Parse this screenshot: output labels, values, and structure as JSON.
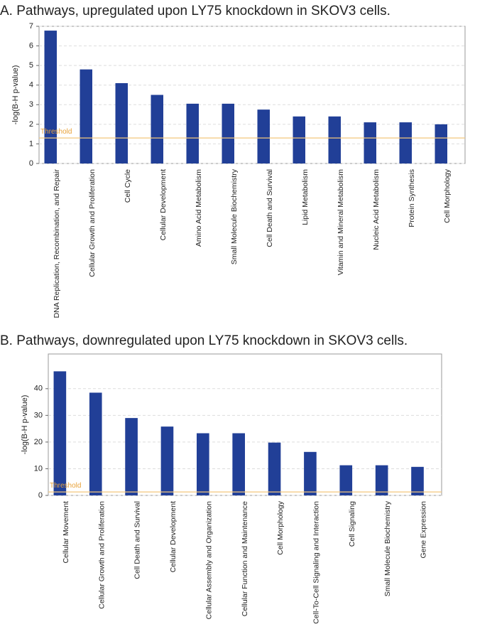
{
  "chart_data": [
    {
      "type": "bar",
      "title": "A. Pathways, upregulated upon LY75 knockdown in SKOV3 cells.",
      "y_label": "-log(B-H p-value)",
      "categories": [
        "DNA Replication, Recombination, and Repair",
        "Cellular Growth and Proliferation",
        "Cell Cycle",
        "Cellular Development",
        "Amino Acid Metabolism",
        "Small Molecule Biochemistry",
        "Cell Death and Survival",
        "Lipid Metabolism",
        "Vitamin and Mineral Metabolism",
        "Nucleic Acid Metabolism",
        "Protein Synthesis",
        "Cell Morphology"
      ],
      "values": [
        6.78,
        4.8,
        4.1,
        3.5,
        3.05,
        3.05,
        2.75,
        2.4,
        2.4,
        2.1,
        2.1,
        2.0
      ],
      "color": "#213f97",
      "ylim": [
        0,
        7
      ],
      "yticks": [
        0,
        1,
        2,
        3,
        4,
        5,
        6,
        7
      ],
      "grid": true,
      "threshold": 1.3,
      "threshold_label": "Threshold"
    },
    {
      "type": "bar",
      "title": "B. Pathways, downregulated upon LY75 knockdown in SKOV3 cells.",
      "y_label": "-log(B-H p-value)",
      "categories": [
        "Cellular Movement",
        "Cellular Growth and Proliferation",
        "Cell Death and Survival",
        "Cellular Development",
        "Cellular Assembly and Organization",
        "Cellular Function and Maintenance",
        "Cell Morphology",
        "Cell-To-Cell Signaling and Interaction",
        "Cell Signaling",
        "Small Molecule Biochemistry",
        "Gene Expression"
      ],
      "values": [
        46.5,
        38.5,
        29,
        25.8,
        23.3,
        23.3,
        19.8,
        16.3,
        11.3,
        11.3,
        10.7
      ],
      "color": "#213f97",
      "ylim": [
        0,
        53
      ],
      "yticks": [
        0,
        10,
        20,
        30,
        40
      ],
      "grid": true,
      "threshold": 1.3,
      "threshold_label": "Threshold"
    }
  ]
}
